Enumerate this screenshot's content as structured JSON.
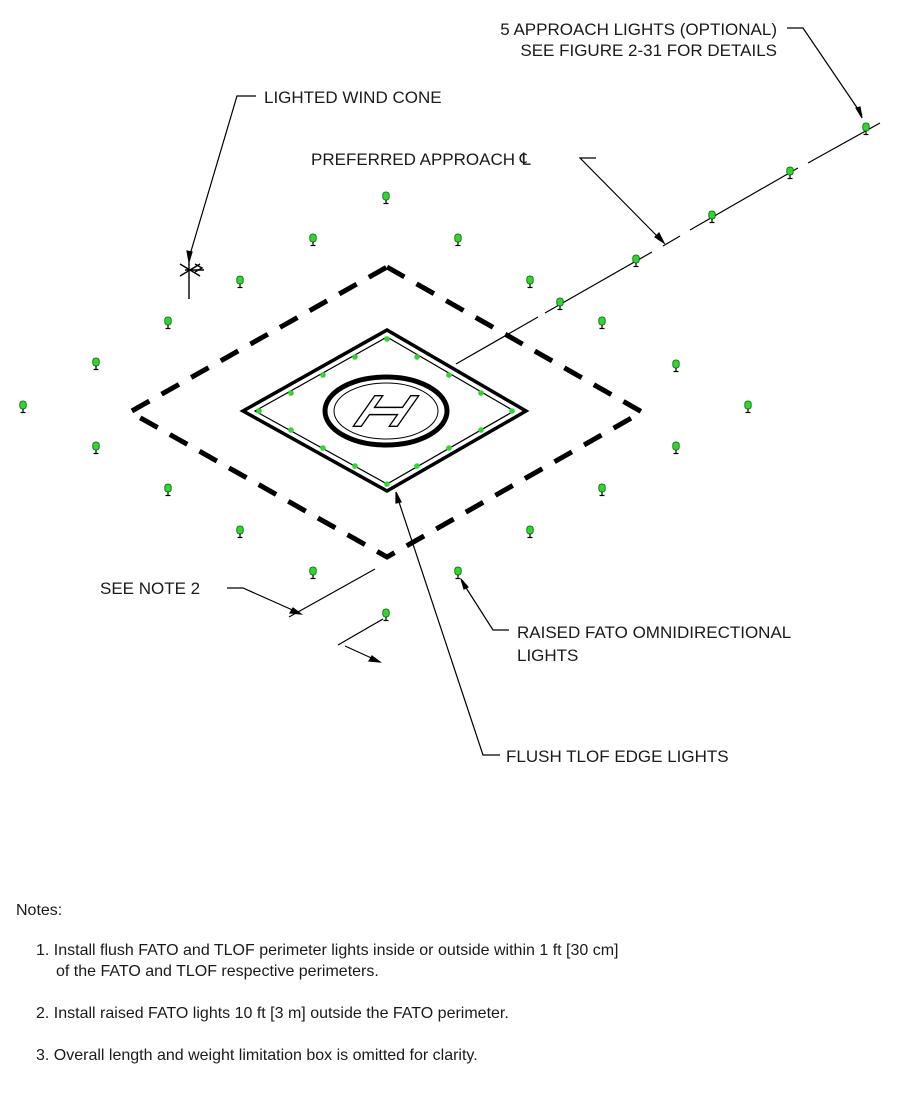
{
  "diagram": {
    "labels": {
      "approach_lights_1": "5 APPROACH LIGHTS (OPTIONAL)",
      "approach_lights_2": "SEE FIGURE 2-31 FOR DETAILS",
      "wind_cone": "LIGHTED WIND CONE",
      "preferred_approach": "PREFERRED APPROACH ℄",
      "see_note_2": "SEE NOTE 2",
      "raised_fato_1": "RAISED FATO OMNIDIRECTIONAL",
      "raised_fato_2": "LIGHTS",
      "flush_tlof": "FLUSH TLOF EDGE LIGHTS",
      "h_marking": "H"
    },
    "colors": {
      "light_green": "#2fd62f",
      "line": "#000000",
      "label_text": "#1a1a1a"
    }
  },
  "notes": {
    "title": "Notes:",
    "items": [
      {
        "line1": "1. Install flush FATO and TLOF perimeter lights inside or outside within 1 ft [30 cm]",
        "line2": "of the FATO and TLOF respective perimeters."
      },
      {
        "line1": "2. Install raised FATO lights 10 ft [3 m] outside the FATO perimeter."
      },
      {
        "line1": "3. Overall length and weight limitation box is omitted for clarity."
      }
    ]
  }
}
